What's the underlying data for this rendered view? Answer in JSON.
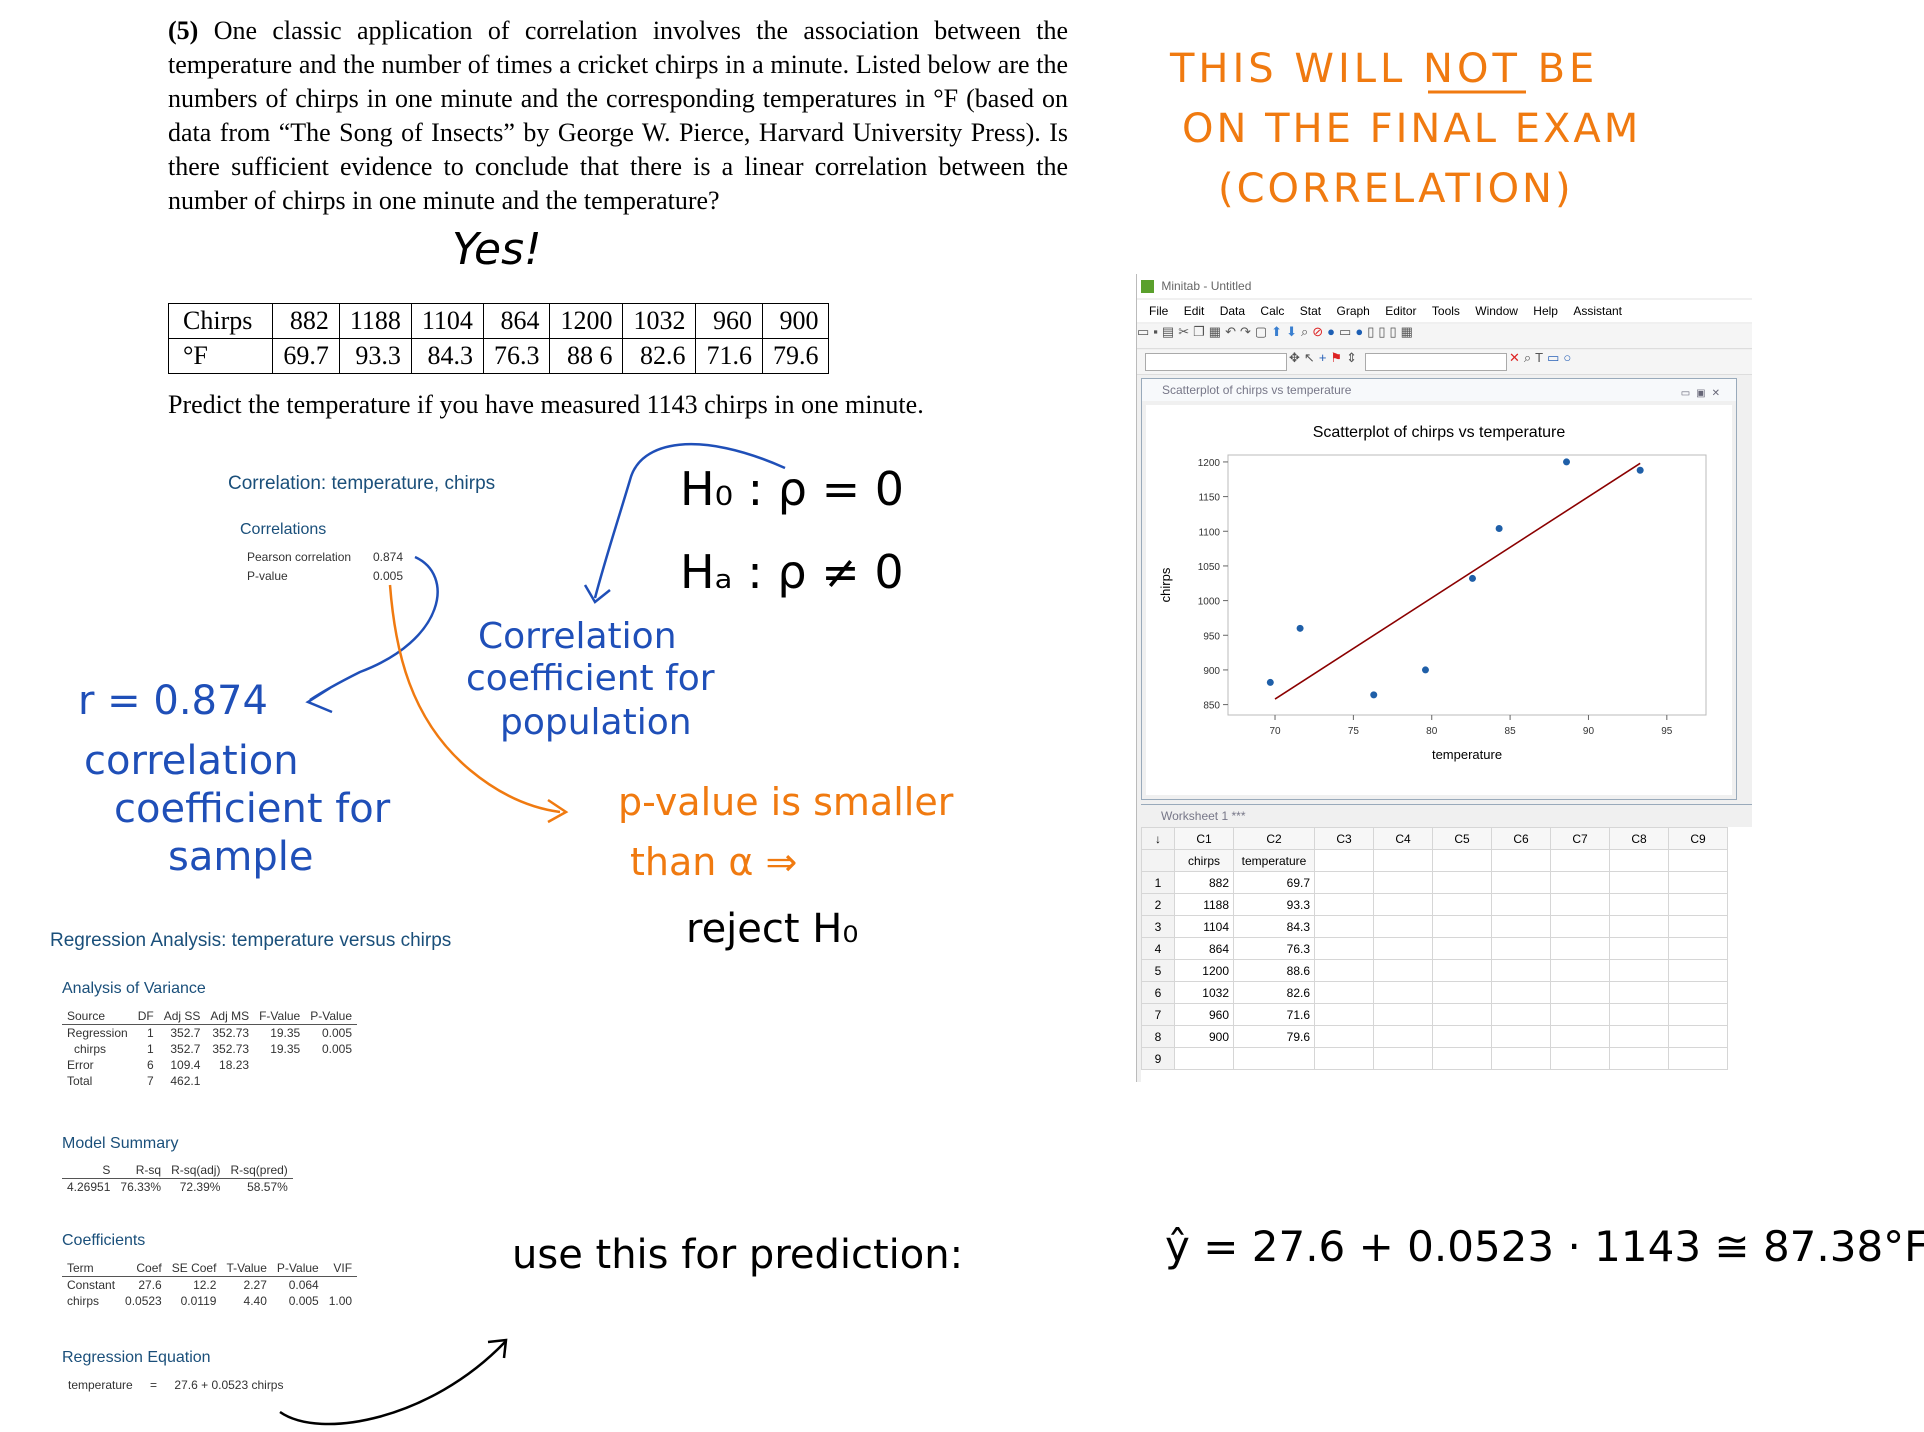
{
  "problem": {
    "number": "(5)",
    "text": "One classic application of correlation involves the association between the temperature and the number of times a cricket chirps in a minute. Listed below are the numbers of chirps in one minute and the corresponding temperatures in °F (based on data from “The Song of Insects” by George W. Pierce, Harvard University Press). Is there sufficient evidence to conclude that there is a linear correlation between the number of chirps in one minute and the temperature?",
    "answer": "Yes!",
    "predict": "Predict the temperature if you have measured 1143 chirps in one minute."
  },
  "data_table": {
    "row1_label": "Chirps",
    "row1": [
      "882",
      "1188",
      "1104",
      "864",
      "1200",
      "1032",
      "960",
      "900"
    ],
    "row2_label": "°F",
    "row2": [
      "69.7",
      "93.3",
      "84.3",
      "76.3",
      "88 6",
      "82.6",
      "71.6",
      "79.6"
    ]
  },
  "notes": {
    "orange_1": "THIS WILL NOT BE",
    "orange_2": "ON THE FINAL EXAM",
    "orange_3": "(CORRELATION)",
    "h0": "H₀ : ρ = 0",
    "ha": "Hₐ : ρ ≠ 0",
    "pop_1": "Correlation",
    "pop_2": "coefficient for",
    "pop_3": "population",
    "r_1": "r = 0.874",
    "r_2": "correlation",
    "r_3": "coefficient for",
    "r_4": "sample",
    "p_1": "p-value is smaller",
    "p_2": "than α ⇒",
    "reject": "reject H₀",
    "use": "use this for prediction:",
    "formula": "ŷ = 27.6 + 0.0523 · 1143 ≅ 87.38°F"
  },
  "correlation": {
    "title": "Correlation: temperature, chirps",
    "subtitle": "Correlations",
    "pearson_label": "Pearson correlation",
    "pearson_value": "0.874",
    "p_label": "P-value",
    "p_value": "0.005"
  },
  "regression": {
    "title": "Regression Analysis: temperature versus chirps",
    "anova_title": "Analysis of Variance",
    "anova_header": [
      "Source",
      "DF",
      "Adj SS",
      "Adj MS",
      "F-Value",
      "P-Value"
    ],
    "anova_rows": [
      [
        "Regression",
        "1",
        "352.7",
        "352.73",
        "19.35",
        "0.005"
      ],
      [
        "chirps",
        "1",
        "352.7",
        "352.73",
        "19.35",
        "0.005"
      ],
      [
        "Error",
        "6",
        "109.4",
        "18.23",
        "",
        ""
      ],
      [
        "Total",
        "7",
        "462.1",
        "",
        "",
        ""
      ]
    ],
    "model_title": "Model Summary",
    "model_header": [
      "S",
      "R-sq",
      "R-sq(adj)",
      "R-sq(pred)"
    ],
    "model_row": [
      "4.26951",
      "76.33%",
      "72.39%",
      "58.57%"
    ],
    "coef_title": "Coefficients",
    "coef_header": [
      "Term",
      "Coef",
      "SE Coef",
      "T-Value",
      "P-Value",
      "VIF"
    ],
    "coef_rows": [
      [
        "Constant",
        "27.6",
        "12.2",
        "2.27",
        "0.064",
        ""
      ],
      [
        "chirps",
        "0.0523",
        "0.0119",
        "4.40",
        "0.005",
        "1.00"
      ]
    ],
    "eq_title": "Regression Equation",
    "eq_lhs": "temperature",
    "eq_eq": "=",
    "eq_rhs": "27.6 + 0.0523 chirps"
  },
  "minitab": {
    "title": "Minitab - Untitled",
    "menu": [
      "File",
      "Edit",
      "Data",
      "Calc",
      "Stat",
      "Graph",
      "Editor",
      "Tools",
      "Window",
      "Help",
      "Assistant"
    ],
    "graph_window_title": "Scatterplot of chirps vs temperature",
    "worksheet_title": "Worksheet 1 ***",
    "ws_cols": [
      "C1",
      "C2",
      "C3",
      "C4",
      "C5",
      "C6",
      "C7",
      "C8",
      "C9"
    ],
    "ws_names": [
      "chirps",
      "temperature"
    ],
    "ws_rows": [
      [
        "882",
        "69.7"
      ],
      [
        "1188",
        "93.3"
      ],
      [
        "1104",
        "84.3"
      ],
      [
        "864",
        "76.3"
      ],
      [
        "1200",
        "88.6"
      ],
      [
        "1032",
        "82.6"
      ],
      [
        "960",
        "71.6"
      ],
      [
        "900",
        "79.6"
      ]
    ],
    "ws_extra_row": "9"
  },
  "chart_data": {
    "type": "scatter",
    "title": "Scatterplot of chirps vs temperature",
    "xlabel": "temperature",
    "ylabel": "chirps",
    "x": [
      69.7,
      93.3,
      84.3,
      76.3,
      88.6,
      82.6,
      71.6,
      79.6
    ],
    "y": [
      882,
      1188,
      1104,
      864,
      1200,
      1032,
      960,
      900
    ],
    "xlim": [
      67,
      97.5
    ],
    "ylim": [
      835,
      1210
    ],
    "xticks": [
      70,
      75,
      80,
      85,
      90,
      95
    ],
    "yticks": [
      850,
      900,
      950,
      1000,
      1050,
      1100,
      1150,
      1200
    ],
    "fit_line": {
      "x": [
        70,
        93.3
      ],
      "y": [
        858,
        1198
      ]
    },
    "point_color": "#1f5fa8",
    "line_color": "#8b0000"
  },
  "colors": {
    "ink_blue": "#1f4fb8",
    "ink_orange": "#f07a10",
    "minitab_blue": "#1a4f7a"
  }
}
